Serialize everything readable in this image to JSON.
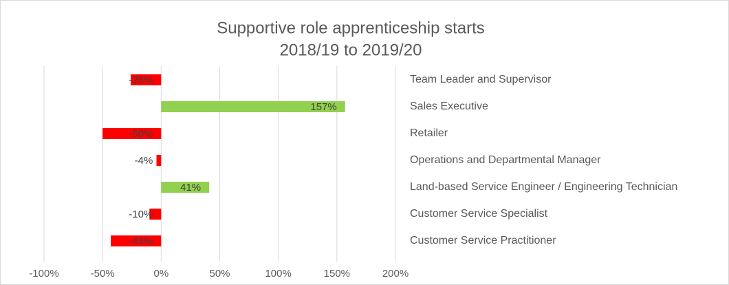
{
  "chart_data": {
    "type": "hbar",
    "title": "Supportive role apprenticeship starts",
    "subtitle": "2018/19 to 2019/20",
    "categories": [
      "Team Leader and Supervisor",
      "Sales Executive",
      "Retailer",
      "Operations and Departmental Manager",
      "Land-based Service Engineer / Engineering Technician",
      "Customer Service Specialist",
      "Customer Service Practitioner"
    ],
    "values": [
      -26,
      157,
      -50,
      -4,
      41,
      -10,
      -43
    ],
    "value_labels": [
      "-26%",
      "157%",
      "-50%",
      "-4%",
      "41%",
      "-10%",
      "-43%"
    ],
    "colors": [
      "#ff0000",
      "#92d050",
      "#ff0000",
      "#ff0000",
      "#92d050",
      "#ff0000",
      "#ff0000"
    ],
    "xlim": [
      -100,
      200
    ],
    "xticks": [
      {
        "value": -100,
        "label": "-100%"
      },
      {
        "value": -50,
        "label": "-50%"
      },
      {
        "value": 0,
        "label": "0%"
      },
      {
        "value": 50,
        "label": "50%"
      },
      {
        "value": 100,
        "label": "100%"
      },
      {
        "value": 150,
        "label": "150%"
      },
      {
        "value": 200,
        "label": "200%"
      }
    ],
    "grid": true
  }
}
